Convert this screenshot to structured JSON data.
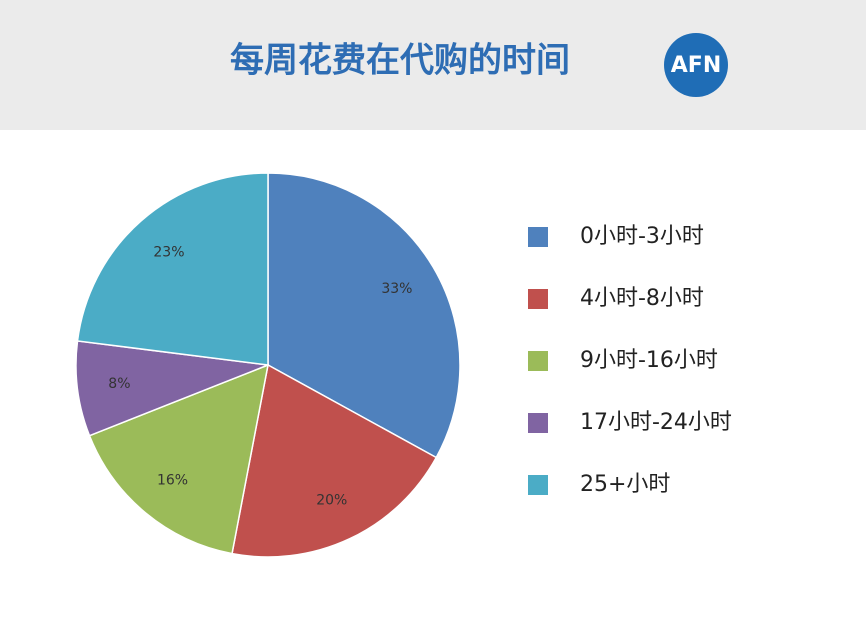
{
  "header": {
    "logo": "AFN"
  },
  "chart_data": {
    "type": "pie",
    "title": "每周花费在代购的时间",
    "categories": [
      "0小时-3小时",
      "4小时-8小时",
      "9小时-16小时",
      "17小时-24小时",
      "25+小时"
    ],
    "values": [
      33,
      20,
      16,
      8,
      23
    ],
    "value_labels": [
      "33%",
      "20%",
      "16%",
      "8%",
      "23%"
    ],
    "colors": [
      "#4f81bd",
      "#c0504d",
      "#9bbb59",
      "#8064a2",
      "#4bacc6"
    ],
    "legend": "right"
  }
}
